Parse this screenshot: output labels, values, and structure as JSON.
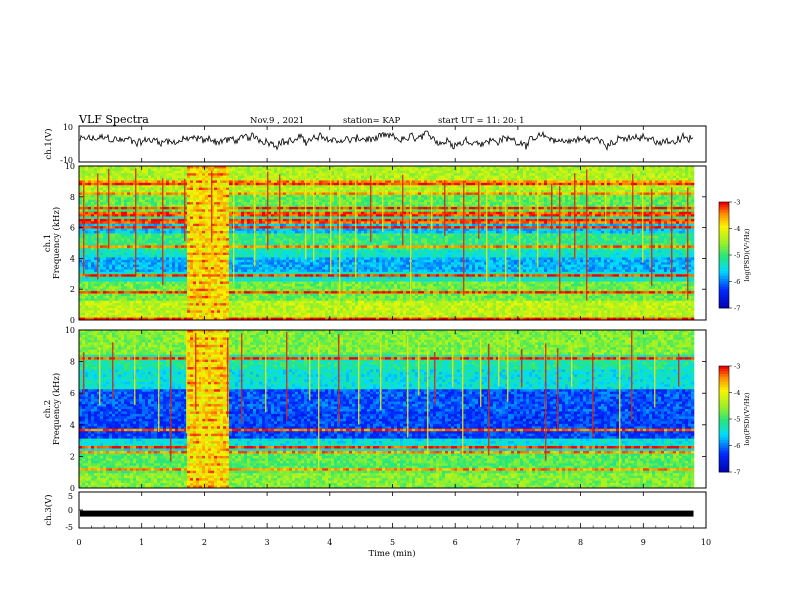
{
  "header": {
    "title": "VLF Spectra",
    "date": "Nov.9  , 2021",
    "station": "station= KAP",
    "start_time": "start  UT  =   11: 20: 1"
  },
  "chart_data": [
    {
      "id": "ch1-waveform",
      "type": "line",
      "ylabel": "ch.1(V)",
      "ylim": [
        -10,
        10
      ],
      "ytick_labels": [
        "10",
        "-10"
      ],
      "xlim": [
        0,
        10
      ],
      "x_end": 9.8,
      "baseline": 2.2,
      "amplitude": 3.6,
      "color": "#000000"
    },
    {
      "id": "ch1-spectrogram",
      "type": "heatmap",
      "ylabel": "ch.1\nFrequency  (kHz)",
      "ylim": [
        0,
        10
      ],
      "ytick_labels": [
        "0",
        "2",
        "4",
        "6",
        "8",
        "10"
      ],
      "xlim": [
        0,
        10
      ],
      "x_end": 9.8,
      "burst": [
        1.7,
        2.35
      ],
      "colorbar": {
        "title": "log(PSD)(V²/Hz)",
        "range": [
          -7,
          -3
        ],
        "tick_labels": [
          "-3",
          "-4",
          "-5",
          "-6",
          "-7"
        ]
      }
    },
    {
      "id": "ch2-spectrogram",
      "type": "heatmap",
      "ylabel": "ch.2\nFrequency  (kHz)",
      "ylim": [
        0,
        10
      ],
      "ytick_labels": [
        "0",
        "2",
        "4",
        "6",
        "8",
        "10"
      ],
      "xlim": [
        0,
        10
      ],
      "x_end": 9.8,
      "burst": [
        1.7,
        2.35
      ],
      "colorbar": {
        "title": "log(PSD)(V²/Hz)",
        "range": [
          -7,
          -3
        ],
        "tick_labels": [
          "-3",
          "-4",
          "-5",
          "-6",
          "-7"
        ]
      }
    },
    {
      "id": "ch3-waveform",
      "type": "line",
      "ylabel": "ch.3(V)",
      "ylim": [
        -5,
        5
      ],
      "ytick_labels": [
        "5",
        "0",
        "-5"
      ],
      "xlim": [
        0,
        10
      ],
      "x_end": 9.8,
      "value": -1,
      "color": "#000000"
    }
  ],
  "x_axis": {
    "label": "Time  (min)",
    "tick_labels": [
      "0",
      "1",
      "2",
      "3",
      "4",
      "5",
      "6",
      "7",
      "8",
      "9",
      "10"
    ]
  }
}
